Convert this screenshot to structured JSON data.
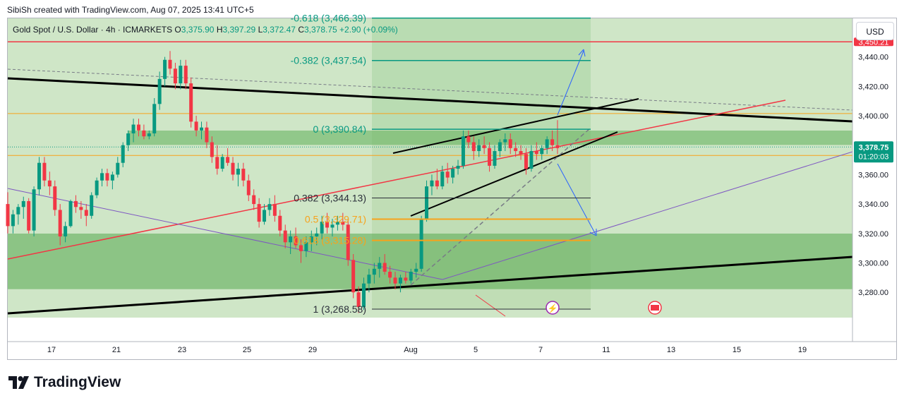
{
  "header": {
    "credit": "SibiSh created with TradingView.com, Aug 07, 2025 13:41 UTC+5"
  },
  "symbol": {
    "name": "Gold Spot / U.S. Dollar · 4h · ICMARKETS",
    "open_label": "O",
    "open": "3,375.90",
    "high_label": "H",
    "high": "3,397.29",
    "low_label": "L",
    "low": "3,372.47",
    "close_label": "C",
    "close": "3,378.75",
    "change": "+2.90 (+0.09%)"
  },
  "currency_button": "USD",
  "brand": "TradingView",
  "colors": {
    "green_zone": "#4caf50",
    "fib_teal": "#089981",
    "fib_orange": "#f7a21b",
    "red_line": "#f23645",
    "trend_black": "#000000",
    "projection_blue": "#2962ff",
    "price_badge": "#089981"
  },
  "chart_data": {
    "type": "candlestick",
    "symbol": "XAUUSD",
    "timeframe": "4h",
    "ylim": [
      3262,
      3478
    ],
    "y_ticks": [
      3280,
      3300,
      3320,
      3340,
      3360,
      3380,
      3400,
      3420,
      3440
    ],
    "y_tick_labels": [
      "3,280.00",
      "3,300.00",
      "3,320.00",
      "3,340.00",
      "3,360.00",
      "3,380.00",
      "3,400.00",
      "3,420.00",
      "3,440.00"
    ],
    "x_tick_labels": [
      "17",
      "21",
      "23",
      "25",
      "29",
      "Aug",
      "5",
      "7",
      "11",
      "13",
      "15",
      "19"
    ],
    "fib_levels": [
      {
        "label": "-0.618 (3,466.39)",
        "price": 3466.39
      },
      {
        "label": "-0.382 (3,437.54)",
        "price": 3437.54
      },
      {
        "label": "0 (3,390.84)",
        "price": 3390.84
      },
      {
        "label": "0.382 (3,344.13)",
        "price": 3344.13
      },
      {
        "label": "0.5 (3,329.71)",
        "price": 3329.71
      },
      {
        "label": "0.618 (3,315.28)",
        "price": 3315.28
      },
      {
        "label": "1 (3,268.58)",
        "price": 3268.58
      }
    ],
    "horizontal_lines": [
      {
        "price": 3450.21,
        "label": "3,450.21"
      },
      {
        "price": 3401.5
      },
      {
        "price": 3373.0
      }
    ],
    "current_price": {
      "price": 3378.75,
      "label": "3,378.75",
      "countdown": "01:20:03"
    },
    "zones": [
      {
        "from": 3384,
        "to": 3388
      },
      {
        "from": 3286,
        "to": 3318
      }
    ],
    "candles": [
      [
        3340,
        3348,
        3320,
        3325
      ],
      [
        3325,
        3336,
        3320,
        3333
      ],
      [
        3333,
        3340,
        3326,
        3338
      ],
      [
        3338,
        3345,
        3330,
        3342
      ],
      [
        3342,
        3344,
        3320,
        3322
      ],
      [
        3322,
        3352,
        3318,
        3350
      ],
      [
        3350,
        3372,
        3346,
        3368
      ],
      [
        3368,
        3372,
        3352,
        3356
      ],
      [
        3356,
        3362,
        3346,
        3352
      ],
      [
        3352,
        3356,
        3332,
        3336
      ],
      [
        3336,
        3340,
        3312,
        3318
      ],
      [
        3318,
        3328,
        3314,
        3325
      ],
      [
        3325,
        3343,
        3324,
        3342
      ],
      [
        3342,
        3346,
        3334,
        3338
      ],
      [
        3338,
        3342,
        3330,
        3336
      ],
      [
        3336,
        3340,
        3325,
        3332
      ],
      [
        3332,
        3348,
        3330,
        3346
      ],
      [
        3346,
        3358,
        3344,
        3356
      ],
      [
        3356,
        3364,
        3352,
        3361
      ],
      [
        3361,
        3364,
        3352,
        3356
      ],
      [
        3356,
        3362,
        3350,
        3360
      ],
      [
        3360,
        3372,
        3358,
        3368
      ],
      [
        3368,
        3382,
        3365,
        3380
      ],
      [
        3380,
        3390,
        3376,
        3388
      ],
      [
        3388,
        3398,
        3382,
        3394
      ],
      [
        3394,
        3398,
        3386,
        3390
      ],
      [
        3390,
        3394,
        3384,
        3386
      ],
      [
        3386,
        3390,
        3384,
        3388
      ],
      [
        3388,
        3412,
        3386,
        3408
      ],
      [
        3408,
        3430,
        3404,
        3425
      ],
      [
        3425,
        3440,
        3420,
        3438
      ],
      [
        3438,
        3444,
        3428,
        3432
      ],
      [
        3432,
        3436,
        3418,
        3422
      ],
      [
        3422,
        3438,
        3418,
        3434
      ],
      [
        3434,
        3438,
        3418,
        3422
      ],
      [
        3422,
        3426,
        3392,
        3396
      ],
      [
        3396,
        3400,
        3386,
        3390
      ],
      [
        3390,
        3396,
        3384,
        3392
      ],
      [
        3392,
        3396,
        3378,
        3382
      ],
      [
        3382,
        3386,
        3368,
        3372
      ],
      [
        3372,
        3380,
        3360,
        3364
      ],
      [
        3364,
        3374,
        3362,
        3372
      ],
      [
        3372,
        3378,
        3366,
        3368
      ],
      [
        3368,
        3372,
        3356,
        3360
      ],
      [
        3360,
        3368,
        3352,
        3364
      ],
      [
        3364,
        3368,
        3352,
        3356
      ],
      [
        3356,
        3360,
        3342,
        3346
      ],
      [
        3346,
        3350,
        3336,
        3340
      ],
      [
        3340,
        3344,
        3324,
        3328
      ],
      [
        3328,
        3340,
        3326,
        3336
      ],
      [
        3336,
        3344,
        3332,
        3340
      ],
      [
        3340,
        3346,
        3328,
        3332
      ],
      [
        3332,
        3336,
        3318,
        3322
      ],
      [
        3322,
        3326,
        3310,
        3314
      ],
      [
        3314,
        3322,
        3306,
        3318
      ],
      [
        3318,
        3324,
        3310,
        3312
      ],
      [
        3312,
        3316,
        3300,
        3308
      ],
      [
        3308,
        3318,
        3304,
        3314
      ],
      [
        3314,
        3322,
        3308,
        3318
      ],
      [
        3318,
        3324,
        3312,
        3320
      ],
      [
        3320,
        3332,
        3316,
        3328
      ],
      [
        3328,
        3334,
        3320,
        3324
      ],
      [
        3324,
        3330,
        3318,
        3326
      ],
      [
        3326,
        3332,
        3322,
        3328
      ],
      [
        3328,
        3334,
        3322,
        3326
      ],
      [
        3326,
        3330,
        3298,
        3302
      ],
      [
        3302,
        3306,
        3276,
        3280
      ],
      [
        3280,
        3284,
        3266,
        3270
      ],
      [
        3270,
        3290,
        3268,
        3286
      ],
      [
        3286,
        3296,
        3280,
        3292
      ],
      [
        3292,
        3300,
        3286,
        3296
      ],
      [
        3296,
        3304,
        3290,
        3300
      ],
      [
        3300,
        3306,
        3292,
        3294
      ],
      [
        3294,
        3298,
        3286,
        3290
      ],
      [
        3290,
        3294,
        3282,
        3286
      ],
      [
        3286,
        3292,
        3280,
        3290
      ],
      [
        3290,
        3294,
        3286,
        3288
      ],
      [
        3288,
        3296,
        3286,
        3294
      ],
      [
        3294,
        3300,
        3290,
        3296
      ],
      [
        3296,
        3332,
        3294,
        3330
      ],
      [
        3330,
        3356,
        3328,
        3352
      ],
      [
        3352,
        3360,
        3346,
        3356
      ],
      [
        3356,
        3364,
        3350,
        3352
      ],
      [
        3352,
        3366,
        3350,
        3362
      ],
      [
        3362,
        3368,
        3354,
        3358
      ],
      [
        3358,
        3366,
        3354,
        3364
      ],
      [
        3364,
        3370,
        3360,
        3366
      ],
      [
        3366,
        3390,
        3364,
        3386
      ],
      [
        3386,
        3390,
        3378,
        3382
      ],
      [
        3382,
        3386,
        3370,
        3376
      ],
      [
        3376,
        3384,
        3372,
        3380
      ],
      [
        3380,
        3386,
        3374,
        3378
      ],
      [
        3378,
        3382,
        3362,
        3366
      ],
      [
        3366,
        3380,
        3364,
        3376
      ],
      [
        3376,
        3384,
        3372,
        3382
      ],
      [
        3382,
        3388,
        3376,
        3384
      ],
      [
        3384,
        3388,
        3374,
        3378
      ],
      [
        3378,
        3382,
        3372,
        3376
      ],
      [
        3376,
        3380,
        3370,
        3374
      ],
      [
        3374,
        3378,
        3360,
        3364
      ],
      [
        3364,
        3380,
        3362,
        3376
      ],
      [
        3376,
        3382,
        3370,
        3374
      ],
      [
        3374,
        3380,
        3370,
        3378
      ],
      [
        3378,
        3386,
        3374,
        3384
      ],
      [
        3384,
        3390,
        3376,
        3380
      ],
      [
        3380,
        3397,
        3374,
        3378
      ]
    ]
  }
}
